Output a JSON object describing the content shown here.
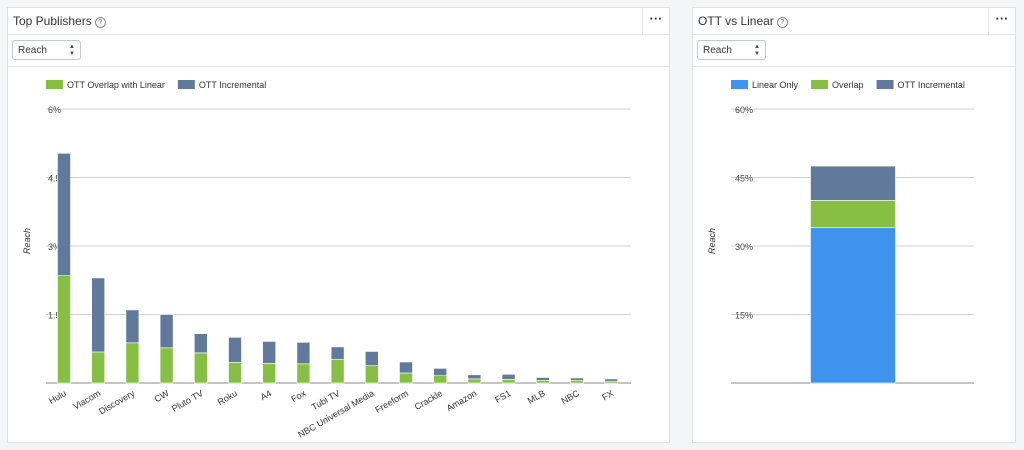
{
  "left_panel": {
    "title": "Top Publishers",
    "help_icon": "?",
    "menu_icon": "···",
    "metric_select": "Reach"
  },
  "right_panel": {
    "title": "OTT vs Linear",
    "help_icon": "?",
    "menu_icon": "···",
    "metric_select": "Reach"
  },
  "colors": {
    "green": "#86bf43",
    "slate": "#61799a",
    "blue": "#3f93ee"
  },
  "chart_data": [
    {
      "type": "bar",
      "stacked": true,
      "ylabel": "Reach",
      "ylim": [
        0,
        6
      ],
      "yticks": [
        "6%",
        "4.5%",
        "3%",
        "1.5%"
      ],
      "ytick_values": [
        6,
        4.5,
        3,
        1.5
      ],
      "categories": [
        "Hulu",
        "Viacom",
        "Discovery",
        "CW",
        "Pluto TV",
        "Roku",
        "A4",
        "Fox",
        "Tubi TV",
        "NBC Universal Media",
        "Freeform",
        "Crackle",
        "Amazon",
        "FS1",
        "MLB",
        "NBC",
        "FX"
      ],
      "series": [
        {
          "name": "OTT Overlap with Linear",
          "color": "#86bf43",
          "values": [
            2.35,
            0.68,
            0.88,
            0.77,
            0.66,
            0.45,
            0.43,
            0.42,
            0.52,
            0.38,
            0.22,
            0.16,
            0.09,
            0.08,
            0.06,
            0.06,
            0.04
          ]
        },
        {
          "name": "OTT Incremental",
          "color": "#61799a",
          "values": [
            2.68,
            1.62,
            0.72,
            0.73,
            0.42,
            0.55,
            0.48,
            0.47,
            0.27,
            0.31,
            0.24,
            0.16,
            0.09,
            0.11,
            0.06,
            0.05,
            0.05
          ]
        }
      ],
      "legend": "top-left",
      "grid": true
    },
    {
      "type": "bar",
      "stacked": true,
      "ylabel": "Reach",
      "ylim": [
        0,
        60
      ],
      "yticks": [
        "60%",
        "45%",
        "30%",
        "15%"
      ],
      "ytick_values": [
        60,
        45,
        30,
        15
      ],
      "categories": [
        ""
      ],
      "series": [
        {
          "name": "Linear Only",
          "color": "#3f93ee",
          "values": [
            34
          ]
        },
        {
          "name": "Overlap",
          "color": "#86bf43",
          "values": [
            6
          ]
        },
        {
          "name": "OTT Incremental",
          "color": "#61799a",
          "values": [
            7.5
          ]
        }
      ],
      "legend": "top",
      "grid": true
    }
  ]
}
